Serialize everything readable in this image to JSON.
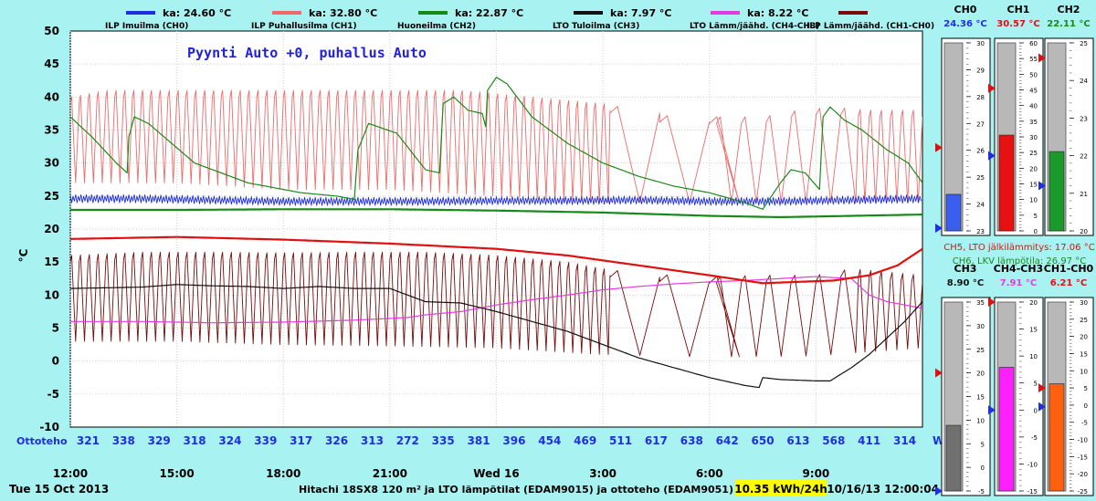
{
  "colors": {
    "background": "#a8f2f2",
    "plot_background": "#ffffff",
    "ch0": "#1f2ee0",
    "ch1": "#f06a6a",
    "ch2": "#188a18",
    "ch3": "#111111",
    "ch4_ch3": "#e23be0",
    "ch1_ch0": "#7a0a0a",
    "ch5": "#e01010",
    "ch6": "#188a18",
    "ottoteho": "#1f2ee0",
    "annotation": "#2020e0"
  },
  "header": {
    "legend": [
      {
        "key": "ch0",
        "ka": "ka: 24.60 °C",
        "name": "ILP Imuilma (CH0)"
      },
      {
        "key": "ch1",
        "ka": "ka: 32.80 °C",
        "name": "ILP Puhallusilma (CH1)"
      },
      {
        "key": "ch2",
        "ka": "ka: 22.87 °C",
        "name": "Huoneilma (CH2)"
      },
      {
        "key": "ch3",
        "ka": "ka: 7.97 °C",
        "name": "LTO Tuloilma (CH3)"
      },
      {
        "key": "ch4_ch3",
        "ka": "ka: 8.22 °C",
        "name": "LTO Lämm/jäähd. (CH4-CH3)"
      },
      {
        "key": "ch1_ch0",
        "ka": "",
        "name": "ILP Lämm/jäähd. (CH1-CH0)"
      }
    ]
  },
  "chart_data": {
    "type": "line",
    "ylabel": "°C",
    "ylim": [
      -10,
      50
    ],
    "yticks": [
      50,
      45,
      40,
      35,
      30,
      25,
      20,
      15,
      10,
      5,
      0,
      -5,
      -10
    ],
    "xlim_hours": [
      0,
      24
    ],
    "x_tick_labels": [
      {
        "h": 0,
        "label": "12:00"
      },
      {
        "h": 3,
        "label": "15:00"
      },
      {
        "h": 6,
        "label": "18:00"
      },
      {
        "h": 9,
        "label": "21:00"
      },
      {
        "h": 12,
        "label": "Wed 16"
      },
      {
        "h": 15,
        "label": "3:00"
      },
      {
        "h": 18,
        "label": "6:00"
      },
      {
        "h": 21,
        "label": "9:00"
      }
    ],
    "grid": true,
    "annotation": "Pyynti Auto +0, puhallus Auto",
    "series": [
      {
        "key": "ch0",
        "name": "ILP Imuilma (CH0)",
        "style": "osc",
        "points": [
          [
            0,
            24.6
          ],
          [
            2,
            24.6
          ],
          [
            4,
            24.4
          ],
          [
            6,
            24.2
          ],
          [
            8,
            24.2
          ],
          [
            10,
            24.2
          ],
          [
            12,
            24.3
          ],
          [
            14,
            24.3
          ],
          [
            16,
            24.4
          ],
          [
            18,
            24.2
          ],
          [
            20,
            24.2
          ],
          [
            22,
            24.4
          ],
          [
            24,
            24.6
          ]
        ],
        "amp": 0.6,
        "period": 0.15
      },
      {
        "key": "ch1",
        "name": "ILP Puhallusilma (CH1)",
        "style": "osc_low",
        "points": [
          [
            0,
            40
          ],
          [
            1,
            41
          ],
          [
            3,
            41
          ],
          [
            5,
            41
          ],
          [
            7,
            41
          ],
          [
            9,
            41
          ],
          [
            11,
            41
          ],
          [
            13,
            40
          ],
          [
            15,
            39
          ],
          [
            16,
            38
          ],
          [
            17,
            37
          ],
          [
            18,
            37
          ],
          [
            19.5,
            37
          ],
          [
            20.5,
            38
          ],
          [
            21.5,
            38.5
          ],
          [
            22.5,
            38
          ],
          [
            24,
            38
          ]
        ],
        "bottom": [
          [
            0,
            27
          ],
          [
            3,
            27
          ],
          [
            6,
            26
          ],
          [
            9,
            26
          ],
          [
            12,
            25
          ],
          [
            15,
            24
          ],
          [
            18,
            24
          ],
          [
            21,
            24
          ],
          [
            24,
            24
          ]
        ],
        "segments": [
          [
            0,
            15.2,
            0.25
          ],
          [
            15.2,
            18.2,
            1.4
          ],
          [
            18.2,
            22.2,
            0.7
          ],
          [
            22.2,
            24,
            0.3
          ]
        ]
      },
      {
        "key": "ch2",
        "name": "Huoneilma (CH2)",
        "style": "smooth",
        "points": [
          [
            0,
            37
          ],
          [
            0.6,
            34
          ],
          [
            1.3,
            30
          ],
          [
            1.6,
            28.5
          ],
          [
            1.65,
            34
          ],
          [
            1.8,
            37
          ],
          [
            2.2,
            36
          ],
          [
            3.5,
            30
          ],
          [
            5,
            27
          ],
          [
            6.5,
            25.5
          ],
          [
            7.5,
            25
          ],
          [
            8,
            24.5
          ],
          [
            8.1,
            32
          ],
          [
            8.4,
            36
          ],
          [
            9.2,
            34.5
          ],
          [
            10,
            29
          ],
          [
            10.4,
            28.5
          ],
          [
            10.5,
            39
          ],
          [
            10.8,
            40
          ],
          [
            11.2,
            38
          ],
          [
            11.6,
            37.5
          ],
          [
            11.7,
            35.5
          ],
          [
            11.75,
            41
          ],
          [
            12,
            43
          ],
          [
            12.3,
            42
          ],
          [
            13,
            37
          ],
          [
            14,
            33
          ],
          [
            15,
            30
          ],
          [
            16,
            28
          ],
          [
            17,
            26.5
          ],
          [
            18,
            25.5
          ],
          [
            19,
            24
          ],
          [
            19.5,
            23
          ],
          [
            20,
            27
          ],
          [
            20.3,
            29
          ],
          [
            20.7,
            28.5
          ],
          [
            21.1,
            26
          ],
          [
            21.2,
            37
          ],
          [
            21.4,
            38.5
          ],
          [
            21.8,
            36.5
          ],
          [
            22.3,
            35
          ],
          [
            23,
            32
          ],
          [
            23.6,
            30
          ],
          [
            24,
            27
          ]
        ]
      },
      {
        "key": "ch3",
        "name": "LTO Tuloilma (CH3)",
        "style": "smooth",
        "points": [
          [
            0,
            11
          ],
          [
            2,
            11.2
          ],
          [
            3,
            11.6
          ],
          [
            4,
            11.4
          ],
          [
            5,
            11.3
          ],
          [
            6,
            11
          ],
          [
            7,
            11.3
          ],
          [
            8,
            11
          ],
          [
            9,
            11
          ],
          [
            10,
            9
          ],
          [
            11,
            8.8
          ],
          [
            12,
            7.5
          ],
          [
            13,
            6
          ],
          [
            14,
            4.5
          ],
          [
            15,
            2.5
          ],
          [
            16,
            0.5
          ],
          [
            17,
            -1
          ],
          [
            18,
            -2.5
          ],
          [
            19,
            -3.7
          ],
          [
            19.4,
            -4
          ],
          [
            19.5,
            -2.5
          ],
          [
            20,
            -2.8
          ],
          [
            21,
            -3
          ],
          [
            21.4,
            -3
          ],
          [
            22,
            -1
          ],
          [
            22.5,
            1
          ],
          [
            23,
            3.5
          ],
          [
            23.5,
            6
          ],
          [
            24,
            9
          ]
        ]
      },
      {
        "key": "ch4_ch3",
        "name": "LTO Lämm/jäähd. (CH4-CH3)",
        "style": "smooth",
        "points": [
          [
            0,
            6
          ],
          [
            2,
            6
          ],
          [
            4,
            5.8
          ],
          [
            6,
            5.9
          ],
          [
            8,
            6.2
          ],
          [
            9.5,
            6.6
          ],
          [
            10,
            7
          ],
          [
            11,
            7.5
          ],
          [
            12,
            8.5
          ],
          [
            13,
            9.3
          ],
          [
            14,
            10
          ],
          [
            15,
            10.8
          ],
          [
            16,
            11.3
          ],
          [
            17,
            11.7
          ],
          [
            18,
            12
          ],
          [
            19,
            12.2
          ],
          [
            20,
            12.5
          ],
          [
            21,
            12.8
          ],
          [
            22,
            12.5
          ],
          [
            22.5,
            10
          ],
          [
            23,
            9
          ],
          [
            23.5,
            8.5
          ],
          [
            24,
            8
          ]
        ]
      },
      {
        "key": "ch1_ch0",
        "name": "ILP Lämm/jäähd. (CH1-CH0)",
        "style": "osc_low",
        "points": [
          [
            0,
            16
          ],
          [
            2,
            16.5
          ],
          [
            4,
            16.5
          ],
          [
            6,
            16.4
          ],
          [
            8,
            16.5
          ],
          [
            10,
            16.5
          ],
          [
            12,
            16
          ],
          [
            13,
            15.5
          ],
          [
            14,
            15
          ],
          [
            15,
            14
          ],
          [
            16,
            13.3
          ],
          [
            17,
            13
          ],
          [
            18,
            12.8
          ],
          [
            19.5,
            13
          ],
          [
            21,
            13
          ],
          [
            22,
            14
          ],
          [
            23,
            13.5
          ],
          [
            24,
            13
          ]
        ],
        "bottom": [
          [
            0,
            3
          ],
          [
            3,
            3
          ],
          [
            6,
            2.5
          ],
          [
            9,
            2.3
          ],
          [
            12,
            2
          ],
          [
            15,
            1
          ],
          [
            18,
            0.6
          ],
          [
            21,
            0.8
          ],
          [
            24,
            2
          ]
        ],
        "segments": [
          [
            0,
            15.2,
            0.25
          ],
          [
            15.2,
            18.2,
            1.4
          ],
          [
            18.2,
            22.2,
            0.7
          ],
          [
            22.2,
            24,
            0.3
          ]
        ]
      },
      {
        "key": "ch5",
        "name": "CH5, LTO jälkilämmitys",
        "style": "thick",
        "points": [
          [
            0,
            18.5
          ],
          [
            3,
            18.8
          ],
          [
            6,
            18.4
          ],
          [
            9,
            17.8
          ],
          [
            12,
            17
          ],
          [
            14,
            16
          ],
          [
            16,
            14.5
          ],
          [
            18,
            13
          ],
          [
            19.5,
            11.8
          ],
          [
            20.5,
            12
          ],
          [
            21.5,
            12.2
          ],
          [
            22.5,
            13
          ],
          [
            23.3,
            14.5
          ],
          [
            24,
            17
          ]
        ]
      },
      {
        "key": "ch6",
        "name": "CH6, LKV lämpötila",
        "style": "thick",
        "points": [
          [
            0,
            22.9
          ],
          [
            3,
            22.9
          ],
          [
            6,
            23
          ],
          [
            9,
            23
          ],
          [
            12,
            22.8
          ],
          [
            15,
            22.5
          ],
          [
            18,
            22
          ],
          [
            20,
            21.8
          ],
          [
            22,
            22
          ],
          [
            24,
            22.2
          ]
        ]
      }
    ]
  },
  "ottoteho": {
    "label": "Ottoteho",
    "unit": "W",
    "values": [
      "321",
      "338",
      "329",
      "318",
      "324",
      "339",
      "317",
      "326",
      "313",
      "272",
      "335",
      "381",
      "396",
      "454",
      "469",
      "511",
      "617",
      "638",
      "642",
      "650",
      "613",
      "568",
      "411",
      "314"
    ]
  },
  "footer": {
    "date_label": "Tue 15 Oct 2013",
    "caption": "Hitachi 18SX8 120 m² ja LTO lämpötilat (EDAM9015) ja ottoteho (EDAM9051)",
    "energy": "10.35 kWh/24h",
    "timestamp": "10/16/13 12:00:04"
  },
  "gauges": [
    {
      "title": "CH0",
      "value": "24.36 °C",
      "value_color": "#1f2ee0",
      "fill_color": "#3a5ff0",
      "min": 23,
      "max": 30,
      "ticks": [
        "30",
        "29",
        "28",
        "27",
        "26",
        "25",
        "24",
        "23"
      ],
      "current": 24.36,
      "red_marker": 26.1,
      "blue_marker": 23.1
    },
    {
      "title": "CH1",
      "value": "30.57 °C",
      "value_color": "#e01010",
      "fill_color": "#e81010",
      "min": 0,
      "max": 60,
      "ticks": [
        "60",
        "55",
        "50",
        "45",
        "40",
        "35",
        "30",
        "25",
        "20",
        "15",
        "10",
        "5",
        "0"
      ],
      "current": 30.57,
      "red_marker": 45.5,
      "blue_marker": 24
    },
    {
      "title": "CH2",
      "value": "22.11 °C",
      "value_color": "#188a18",
      "fill_color": "#1a9a2a",
      "min": 20,
      "max": 25,
      "ticks": [
        "25",
        "24",
        "23",
        "22",
        "21",
        "20"
      ],
      "current": 22.11,
      "red_marker": 24.6,
      "blue_marker": 21.2
    },
    {
      "title": "CH3",
      "value": "8.90 °C",
      "value_color": "#111111",
      "fill_color": "#707070",
      "min": -5,
      "max": 35,
      "ticks": [
        "35",
        "30",
        "25",
        "20",
        "15",
        "10",
        "5",
        "0",
        "-5"
      ],
      "current": 8.9,
      "red_marker": 20,
      "blue_marker": -5
    },
    {
      "title": "CH4-CH3",
      "value": "7.91 °C",
      "value_color": "#e23be0",
      "fill_color": "#ff20ff",
      "min": -15,
      "max": 20,
      "ticks": [
        "20",
        "15",
        "10",
        "5",
        "0",
        "-5",
        "-10",
        "-15"
      ],
      "current": 7.91,
      "red_marker": 20,
      "blue_marker": 0
    },
    {
      "title": "CH1-CH0",
      "value": "6.21 °C",
      "value_color": "#e01010",
      "fill_color": "#ff6010",
      "min": -25,
      "max": 30,
      "ticks": [
        "30",
        "25",
        "20",
        "15",
        "10",
        "5",
        "0",
        "-5",
        "-10",
        "-15",
        "-20",
        "-25"
      ],
      "current": 6.21,
      "red_marker": 5,
      "blue_marker": -0.5
    }
  ],
  "side_text": {
    "ch5": "CH5, LTO jälkilämmitys: 17.06 °C",
    "ch6": "CH6, LKV lämpötila: 26.97 °C"
  }
}
